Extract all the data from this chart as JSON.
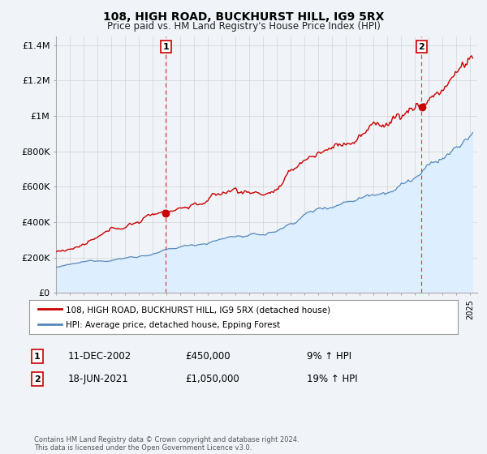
{
  "title": "108, HIGH ROAD, BUCKHURST HILL, IG9 5RX",
  "subtitle": "Price paid vs. HM Land Registry's House Price Index (HPI)",
  "legend_line1": "108, HIGH ROAD, BUCKHURST HILL, IG9 5RX (detached house)",
  "legend_line2": "HPI: Average price, detached house, Epping Forest",
  "transaction1_date": "11-DEC-2002",
  "transaction1_price": "£450,000",
  "transaction1_hpi": "9% ↑ HPI",
  "transaction1_year": 2002.95,
  "transaction1_value": 450000,
  "transaction2_date": "18-JUN-2021",
  "transaction2_price": "£1,050,000",
  "transaction2_hpi": "19% ↑ HPI",
  "transaction2_year": 2021.46,
  "transaction2_value": 1050000,
  "footer": "Contains HM Land Registry data © Crown copyright and database right 2024.\nThis data is licensed under the Open Government Licence v3.0.",
  "ylim": [
    0,
    1450000
  ],
  "xlim_start": 1995,
  "xlim_end": 2025.5,
  "red_color": "#cc0000",
  "blue_color": "#5588bb",
  "blue_fill": "#ddeeff",
  "dashed_line_color": "#dd3333",
  "background_color": "#f0f4f8",
  "grid_color": "#cccccc"
}
